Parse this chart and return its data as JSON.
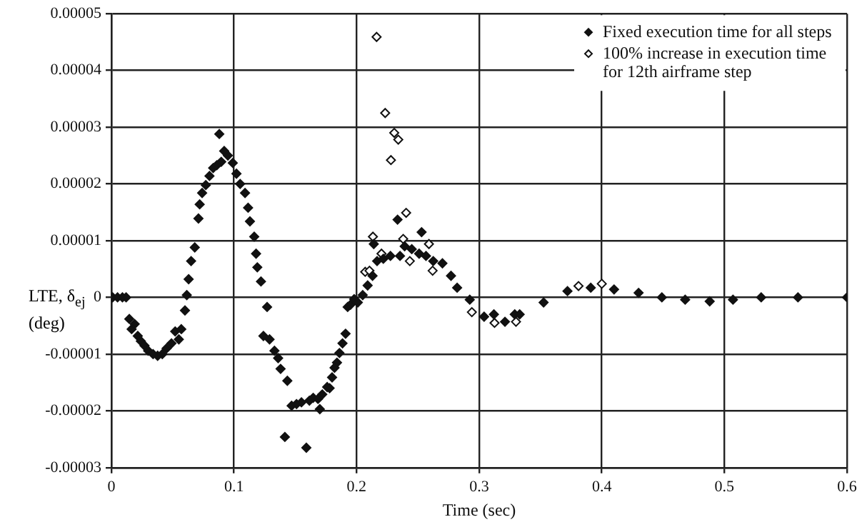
{
  "chart_data": {
    "type": "scatter",
    "xlabel": "Time (sec)",
    "ylabel": "LTE, δ$_{ej}$ (deg)",
    "xlim": [
      0,
      0.6
    ],
    "xticks": [
      0,
      0.1,
      0.2,
      0.3,
      0.4,
      0.5,
      0.6
    ],
    "ylim": [
      -3e-05,
      5e-05
    ],
    "yticks": [
      {
        "value": -3e-05,
        "label": "-0.00003"
      },
      {
        "value": -2e-05,
        "label": "-0.00002"
      },
      {
        "value": -1e-05,
        "label": "-0.00001"
      },
      0,
      {
        "value": 1e-05,
        "label": "0.00001"
      },
      {
        "value": 2e-05,
        "label": "0.00002"
      },
      {
        "value": 3e-05,
        "label": "0.00003"
      },
      {
        "value": 4e-05,
        "label": "0.00004"
      },
      {
        "value": 5e-05,
        "label": "0.00005"
      }
    ],
    "grid": true,
    "legend": "top right",
    "marker": "diamond",
    "series": [
      {
        "name": "Fixed execution time for all steps",
        "color": "#111111",
        "x": [
          0.001,
          0.005,
          0.009,
          0.012,
          0.0146,
          0.0165,
          0.019,
          0.0215,
          0.024,
          0.027,
          0.03,
          0.034,
          0.0377,
          0.0415,
          0.045,
          0.049,
          0.052,
          0.055,
          0.057,
          0.06,
          0.0615,
          0.063,
          0.065,
          0.068,
          0.071,
          0.072,
          0.074,
          0.077,
          0.08,
          0.083,
          0.086,
          0.088,
          0.0896,
          0.092,
          0.095,
          0.099,
          0.102,
          0.105,
          0.109,
          0.1115,
          0.113,
          0.1165,
          0.118,
          0.119,
          0.122,
          0.124,
          0.127,
          0.129,
          0.133,
          0.136,
          0.138,
          0.1415,
          0.1435,
          0.147,
          0.151,
          0.155,
          0.159,
          0.1615,
          0.1646,
          0.1685,
          0.17,
          0.172,
          0.176,
          0.178,
          0.18,
          0.182,
          0.184,
          0.186,
          0.1885,
          0.191,
          0.1927,
          0.195,
          0.198,
          0.201,
          0.205,
          0.209,
          0.213,
          0.214,
          0.2167,
          0.2218,
          0.2276,
          0.2334,
          0.2354,
          0.2392,
          0.245,
          0.251,
          0.253,
          0.2566,
          0.2625,
          0.27,
          0.277,
          0.282,
          0.2923,
          0.304,
          0.312,
          0.321,
          0.329,
          0.333,
          0.3525,
          0.372,
          0.391,
          0.41,
          0.43,
          0.449,
          0.468,
          0.488,
          0.507,
          0.53,
          0.56,
          0.6
        ],
        "values": [
          0,
          0,
          0,
          0,
          -3.8e-06,
          -5.6e-06,
          -4.7e-06,
          -6.8e-06,
          -7.7e-06,
          -8.5e-06,
          -9.4e-06,
          -1e-05,
          -1.03e-05,
          -1e-05,
          -9e-06,
          -8.1e-06,
          -6e-06,
          -7.4e-06,
          -5.6e-06,
          -2.3e-06,
          4e-07,
          3.2e-06,
          6.4e-06,
          8.8e-06,
          1.39e-05,
          1.64e-05,
          1.84e-05,
          1.98e-05,
          2.14e-05,
          2.28e-05,
          2.33e-05,
          2.88e-05,
          2.39e-05,
          2.58e-05,
          2.5e-05,
          2.37e-05,
          2.18e-05,
          2e-05,
          1.84e-05,
          1.58e-05,
          1.34e-05,
          1.07e-05,
          7.7e-06,
          5.3e-06,
          2.8e-06,
          -6.8e-06,
          -1.7e-06,
          -7.4e-06,
          -9.4e-06,
          -1.07e-05,
          -1.26e-05,
          -2.46e-05,
          -1.47e-05,
          -1.91e-05,
          -1.88e-05,
          -1.85e-05,
          -2.65e-05,
          -1.82e-05,
          -1.77e-05,
          -1.79e-05,
          -1.97e-05,
          -1.71e-05,
          -1.58e-05,
          -1.6e-05,
          -1.41e-05,
          -1.24e-05,
          -1.15e-05,
          -9.8e-06,
          -8.1e-06,
          -6.4e-06,
          -1.7e-06,
          -1.3e-06,
          -3e-07,
          -9e-07,
          4e-07,
          2.1e-06,
          3.8e-06,
          9.4e-06,
          6.4e-06,
          6.8e-06,
          7.3e-06,
          1.37e-05,
          7.3e-06,
          9e-06,
          8.5e-06,
          7.7e-06,
          1.15e-05,
          7.3e-06,
          6.4e-06,
          6e-06,
          3.8e-06,
          1.7e-06,
          -4e-07,
          -3.4e-06,
          -3e-06,
          -4.3e-06,
          -3e-06,
          -3e-06,
          -9e-07,
          1.1e-06,
          1.7e-06,
          1.4e-06,
          8e-07,
          0,
          -4e-07,
          -7e-07,
          -4e-07,
          0,
          0,
          0
        ]
      },
      {
        "name": "100% increase in execution time for 12th airframe step",
        "color": "#111111",
        "x": [
          0.207,
          0.2105,
          0.2133,
          0.2163,
          0.2203,
          0.2233,
          0.228,
          0.2307,
          0.234,
          0.238,
          0.239,
          0.2404,
          0.2434,
          0.244,
          0.259,
          0.262,
          0.294,
          0.3125,
          0.33,
          0.381,
          0.4
        ],
        "values": [
          4.5e-06,
          4.7e-06,
          1.07e-05,
          4.59e-05,
          7.7e-06,
          3.25e-05,
          2.42e-05,
          2.9e-05,
          2.78e-05,
          1.03e-05,
          null,
          1.49e-05,
          6.4e-06,
          null,
          9.4e-06,
          4.7e-06,
          -2.6e-06,
          -4.5e-06,
          -4.3e-06,
          2e-06,
          2.4e-06
        ]
      }
    ]
  }
}
